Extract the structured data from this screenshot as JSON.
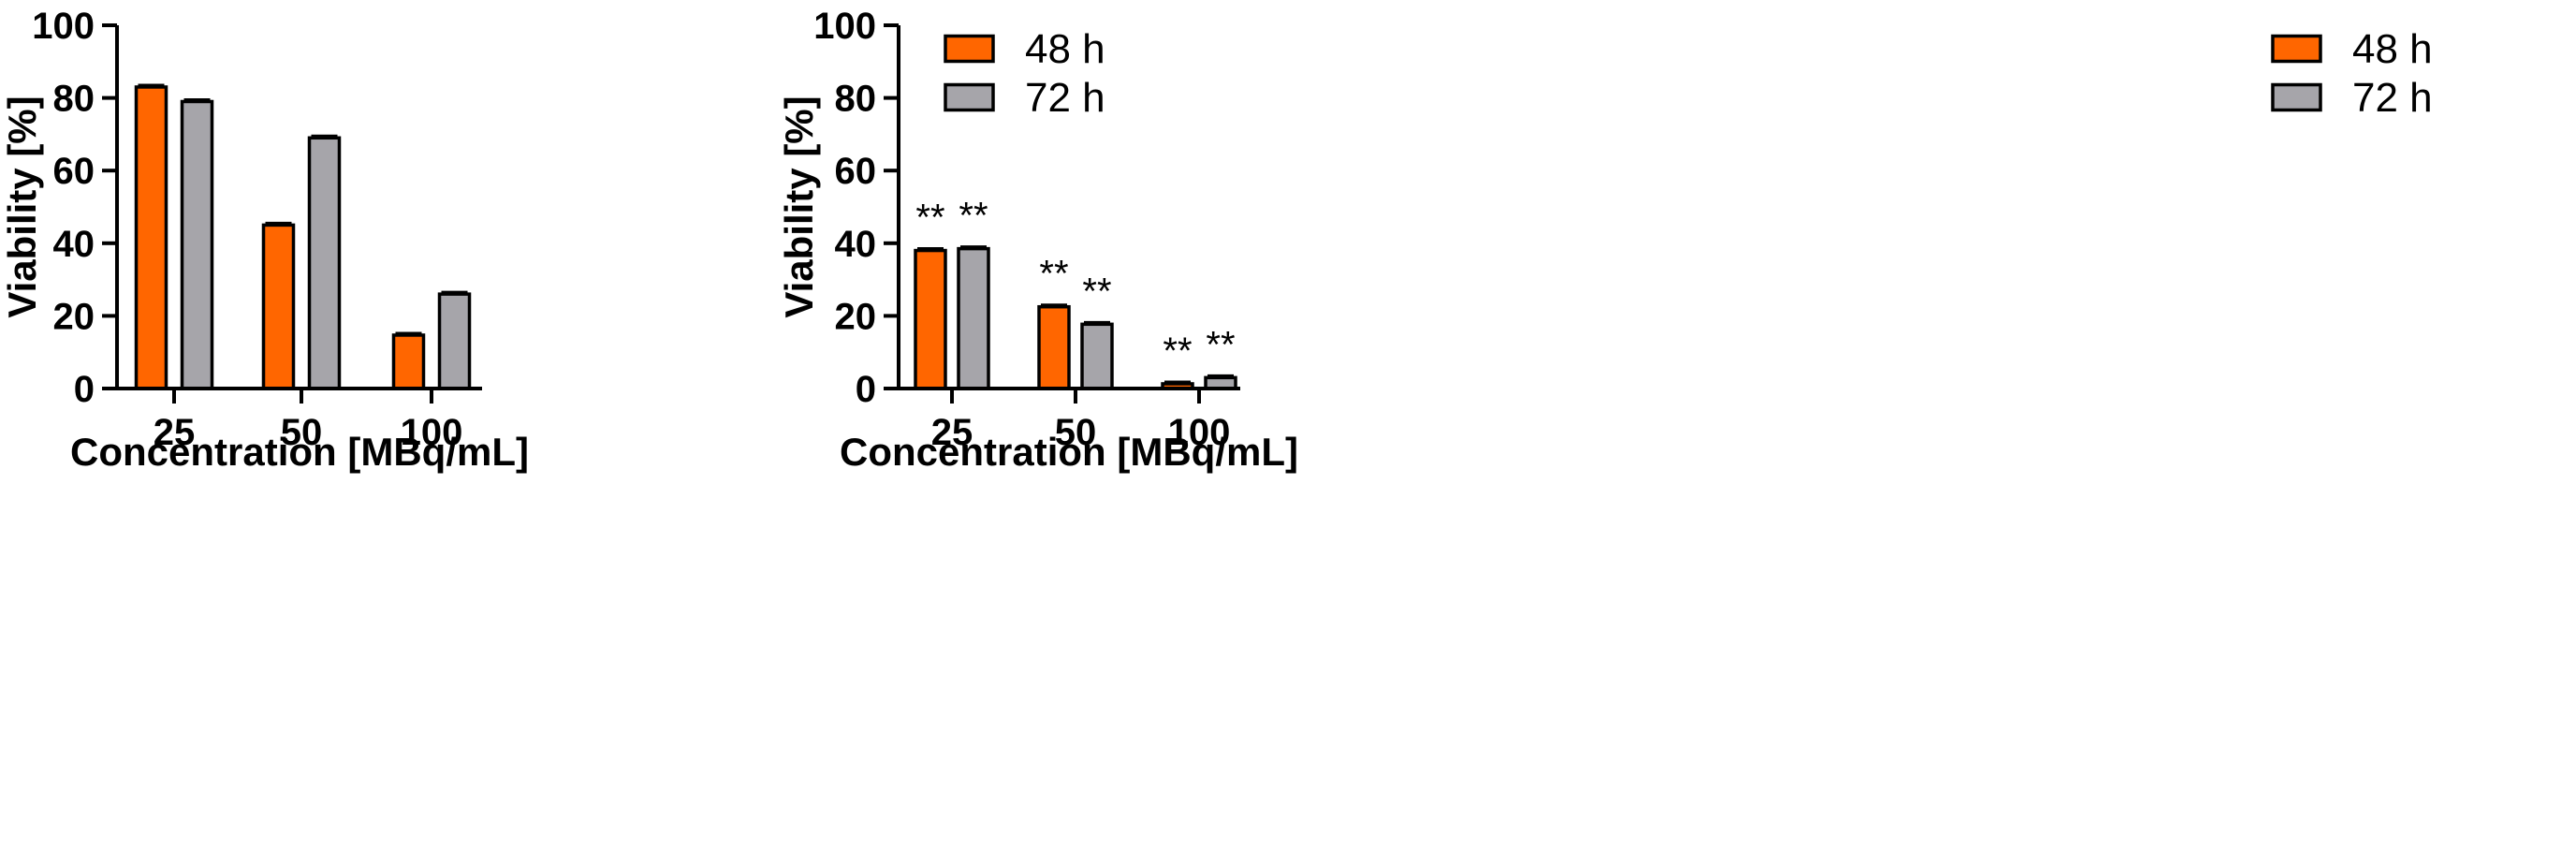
{
  "colors": {
    "series_48h": "#ff6600",
    "series_72h": "#a6a5aa",
    "axis": "#000000"
  },
  "chart_data": [
    {
      "type": "bar",
      "categories": [
        "25",
        "50",
        "100"
      ],
      "series": [
        {
          "name": "48 h",
          "values": [
            83,
            45,
            14.7
          ]
        },
        {
          "name": "72 h",
          "values": [
            79,
            69,
            26
          ]
        }
      ],
      "significance": [
        [
          "",
          ""
        ],
        [
          "",
          ""
        ],
        [
          "",
          ""
        ]
      ],
      "xlabel": "Concentration [MBq/mL]",
      "ylabel": "Viability [%]",
      "ylim": [
        0,
        100
      ],
      "yticks": [
        0,
        20,
        40,
        60,
        80,
        100
      ],
      "grid": false,
      "legend": "top-right"
    },
    {
      "type": "bar",
      "categories": [
        "25",
        "50",
        "100"
      ],
      "series": [
        {
          "name": "48 h",
          "values": [
            38,
            22.5,
            1.3
          ]
        },
        {
          "name": "72 h",
          "values": [
            38.5,
            17.7,
            3
          ]
        }
      ],
      "significance": [
        [
          "**",
          "**"
        ],
        [
          "**",
          "**"
        ],
        [
          "**",
          "**"
        ]
      ],
      "xlabel": "Concentration [MBq/mL]",
      "ylabel": "Viability [%]",
      "ylim": [
        0,
        100
      ],
      "yticks": [
        0,
        20,
        40,
        60,
        80,
        100
      ],
      "grid": false,
      "legend": "top-right"
    }
  ]
}
